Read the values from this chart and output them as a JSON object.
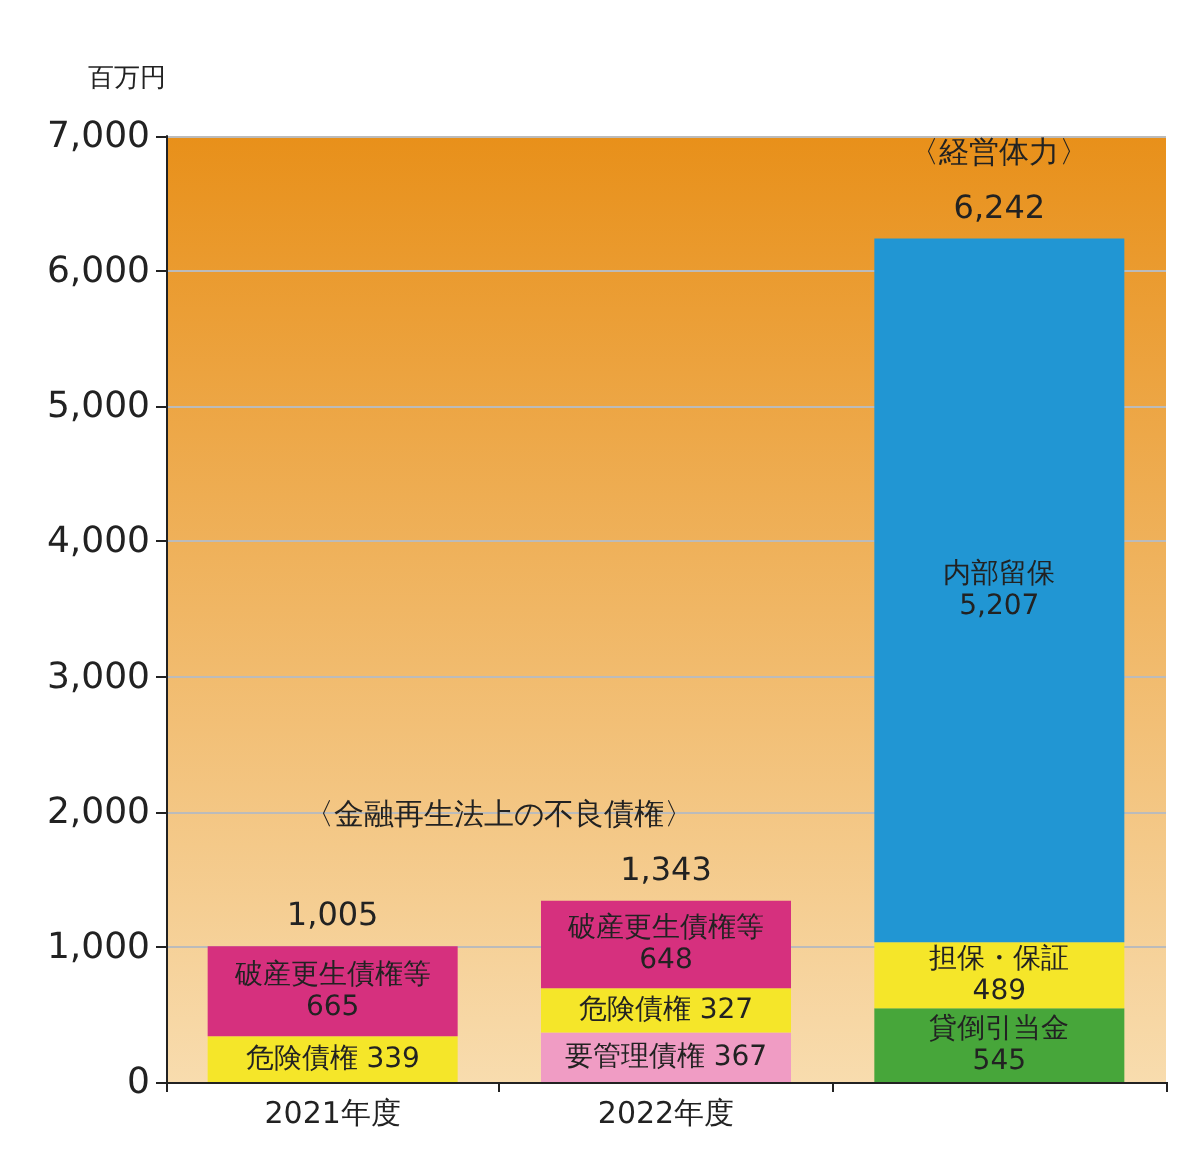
{
  "chart_data": {
    "type": "bar",
    "stacked": true,
    "ylabel": "百万円",
    "categories": [
      "2021年度",
      "2022年度",
      null
    ],
    "series": [
      {
        "name": "要管理債権",
        "color": "#f09cc4",
        "values": [
          null,
          367,
          null
        ],
        "value_labels": [
          null,
          "367",
          null
        ]
      },
      {
        "name": "危険債権",
        "color": "#f5e629",
        "values": [
          339,
          327,
          null
        ],
        "value_labels": [
          "339",
          "327",
          null
        ]
      },
      {
        "name": "破産更生債権等",
        "color": "#d6307e",
        "values": [
          665,
          648,
          null
        ],
        "value_labels": [
          "665",
          "648",
          null
        ]
      },
      {
        "name": "貸倒引当金",
        "color": "#47a63a",
        "values": [
          null,
          null,
          545
        ],
        "value_labels": [
          null,
          null,
          "545"
        ]
      },
      {
        "name": "担保・保証",
        "color": "#f5e629",
        "values": [
          null,
          null,
          489
        ],
        "value_labels": [
          null,
          null,
          "489"
        ]
      },
      {
        "name": "内部留保",
        "color": "#2196d3",
        "values": [
          null,
          null,
          5207
        ],
        "value_labels": [
          null,
          null,
          "5,207"
        ]
      }
    ],
    "totals": [
      "1,005",
      "1,343",
      "6,242"
    ],
    "annotations": [
      "〈金融再生法上の不良債権〉",
      "〈経営体力〉"
    ],
    "ylim": [
      0,
      7000
    ],
    "yticks": [
      0,
      {
        "value": 1000,
        "label": "1,000"
      },
      {
        "value": 2000,
        "label": "2,000"
      },
      {
        "value": 3000,
        "label": "3,000"
      },
      {
        "value": 4000,
        "label": "4,000"
      },
      {
        "value": 5000,
        "label": "5,000"
      },
      {
        "value": 6000,
        "label": "6,000"
      },
      {
        "value": 7000,
        "label": "7,000"
      }
    ],
    "grid": "y",
    "legend": false
  }
}
